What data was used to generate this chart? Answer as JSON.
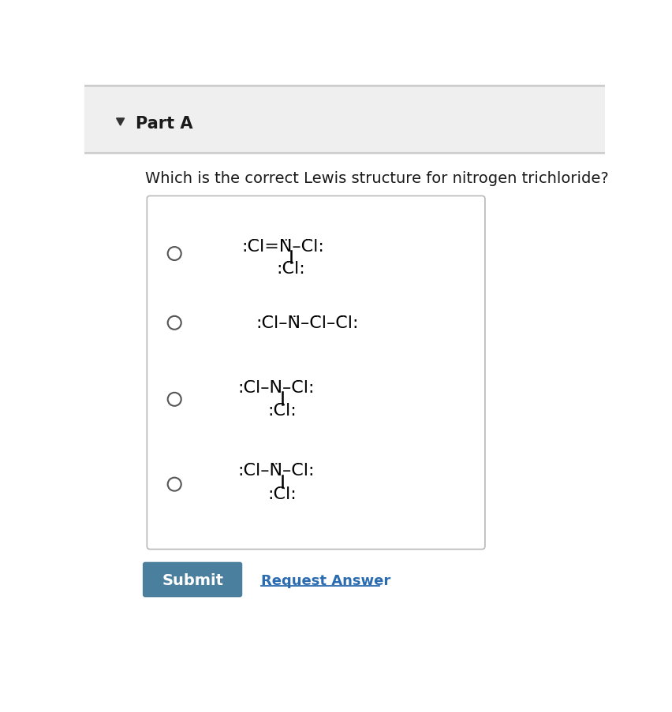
{
  "bg_color": "#f5f5f5",
  "white": "#ffffff",
  "header_color": "#efefef",
  "border_color": "#cccccc",
  "part_a_text": "Part A",
  "question_text": "Which is the correct Lewis structure for nitrogen trichloride?",
  "submit_color": "#4a7f9e",
  "submit_text": "Submit",
  "request_text": "Request Answer",
  "request_color": "#2b6cb0",
  "radio_color": "#555555",
  "triangle_color": "#333333",
  "option_box_edge": "#b8b8b8",
  "fs_lewis": 16,
  "fs_part_a": 15,
  "fs_question": 14,
  "fs_submit": 14,
  "fs_request": 13
}
